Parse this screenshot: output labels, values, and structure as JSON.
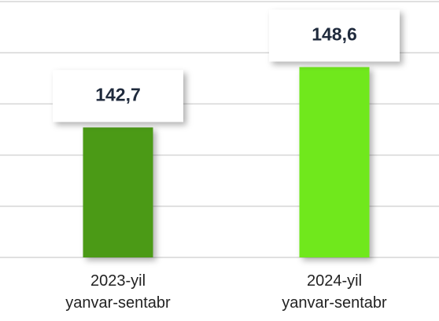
{
  "chart_data": {
    "type": "bar",
    "categories": [
      "2023-yil\nyanvar-sentabr",
      "2024-yil\nyanvar-sentabr"
    ],
    "values": [
      142.7,
      148.6
    ],
    "value_labels": [
      "142,7",
      "148,6"
    ],
    "colors": [
      "#4b9a13",
      "#6fe81f"
    ],
    "ylim": [
      130,
      155
    ],
    "yticks": [
      130,
      135,
      140,
      145,
      150,
      155
    ],
    "grid": true
  }
}
